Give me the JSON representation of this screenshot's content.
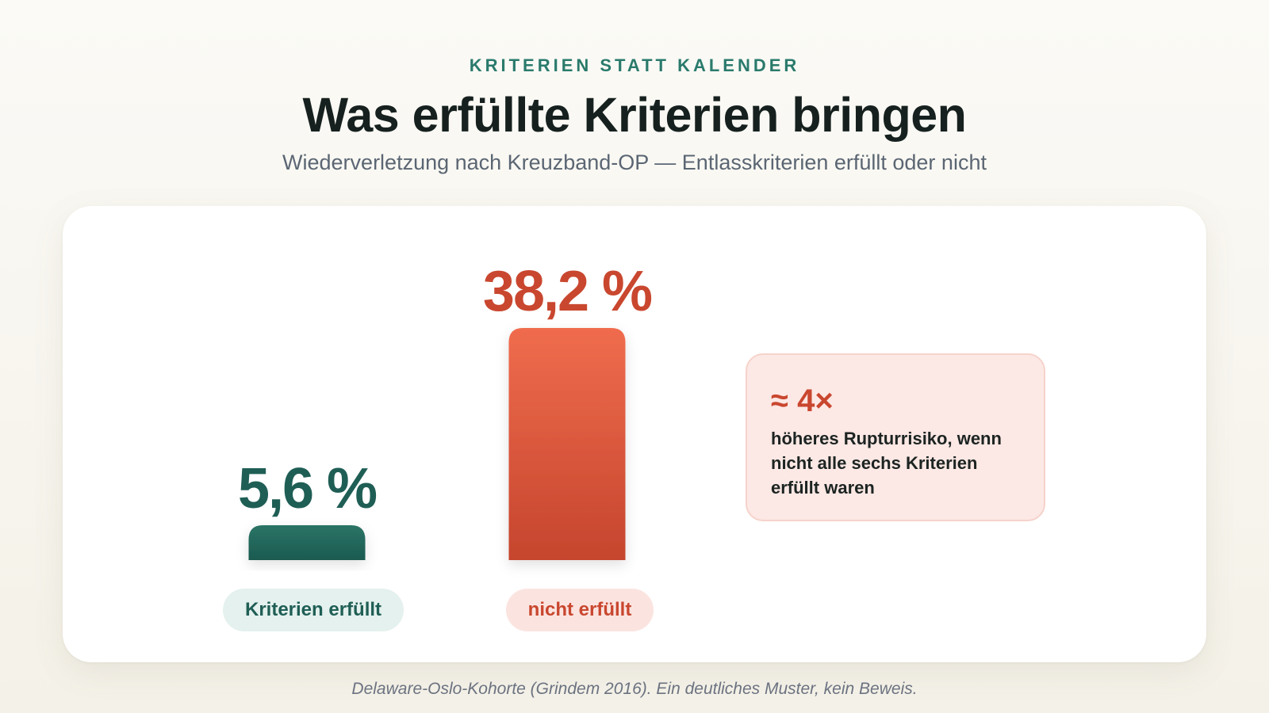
{
  "header": {
    "eyebrow": "KRITERIEN STATT KALENDER",
    "title": "Was erfüllte Kriterien bringen",
    "subtitle": "Wiederverletzung nach Kreuzband-OP — Entlasskriterien erfüllt oder nicht"
  },
  "chart_data": {
    "type": "bar",
    "title": "Was erfüllte Kriterien bringen",
    "subtitle": "Wiederverletzung nach Kreuzband-OP — Entlasskriterien erfüllt oder nicht",
    "categories": [
      "Kriterien erfüllt",
      "nicht erfüllt"
    ],
    "values": [
      5.6,
      38.2
    ],
    "value_labels": [
      "5,6 %",
      "38,2 %"
    ],
    "colors": [
      "#1f5e55",
      "#e0553a"
    ],
    "ylim": [
      0,
      38.2
    ],
    "grid": false,
    "xlabel": "",
    "ylabel": ""
  },
  "callout": {
    "big": "≈ 4×",
    "text": "höheres Rupturrisiko, wenn nicht alle sechs Kriterien erfüllt waren"
  },
  "footer": {
    "source": "Delaware-Oslo-Kohorte (Grindem 2016). Ein deutliches Muster, kein Beweis."
  }
}
